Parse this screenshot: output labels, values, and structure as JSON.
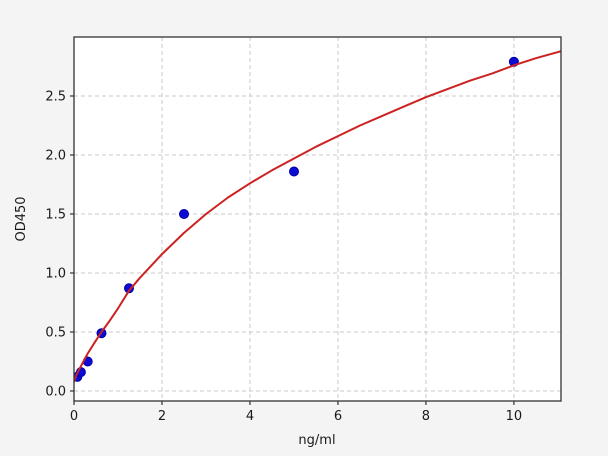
{
  "figure": {
    "background_color": "#f4f4f4",
    "plot_background_color": "#ffffff",
    "grid_color": "#c9c9c9",
    "spine_color": "#333333",
    "tick_color": "#333333",
    "tick_label_color": "#1a1a1a"
  },
  "chart_data": {
    "type": "scatter",
    "title": "",
    "xlabel": "ng/ml",
    "ylabel": "OD450",
    "xlim": [
      0,
      11.07
    ],
    "ylim": [
      -0.085,
      3.0
    ],
    "x_tick_values": [
      0,
      2,
      4,
      6,
      8,
      10
    ],
    "x_tick_labels": [
      "0",
      "2",
      "4",
      "6",
      "8",
      "10"
    ],
    "y_tick_values": [
      0.0,
      0.5,
      1.0,
      1.5,
      2.0,
      2.5
    ],
    "y_tick_labels": [
      "0.0",
      "0.5",
      "1.0",
      "1.5",
      "2.0",
      "2.5"
    ],
    "grid": "dashed",
    "legend_position": "none",
    "series": [
      {
        "name": "standard-points",
        "type": "scatter",
        "color": "#0b0bd6",
        "marker_edge_color": "#0000a0",
        "marker_radius": 4.5,
        "x": [
          0.078,
          0.156,
          0.3125,
          0.625,
          1.25,
          2.5,
          5,
          10
        ],
        "y": [
          0.12,
          0.16,
          0.25,
          0.49,
          0.87,
          1.5,
          1.86,
          2.79
        ]
      },
      {
        "name": "fit-curve",
        "type": "line",
        "color": "#cc2222",
        "line_width": 2,
        "points": [
          [
            0,
            0.08
          ],
          [
            0.05,
            0.13
          ],
          [
            0.1,
            0.17
          ],
          [
            0.2,
            0.24
          ],
          [
            0.3,
            0.31
          ],
          [
            0.45,
            0.4
          ],
          [
            0.625,
            0.5
          ],
          [
            0.8,
            0.59
          ],
          [
            1.0,
            0.7
          ],
          [
            1.25,
            0.85
          ],
          [
            1.5,
            0.96
          ],
          [
            1.75,
            1.06
          ],
          [
            2.0,
            1.16
          ],
          [
            2.25,
            1.25
          ],
          [
            2.5,
            1.34
          ],
          [
            3.0,
            1.5
          ],
          [
            3.5,
            1.64
          ],
          [
            4.0,
            1.76
          ],
          [
            4.5,
            1.87
          ],
          [
            5.0,
            1.97
          ],
          [
            5.5,
            2.07
          ],
          [
            6.0,
            2.16
          ],
          [
            6.5,
            2.25
          ],
          [
            7.0,
            2.33
          ],
          [
            7.5,
            2.41
          ],
          [
            8.0,
            2.49
          ],
          [
            8.5,
            2.56
          ],
          [
            9.0,
            2.63
          ],
          [
            9.5,
            2.69
          ],
          [
            10.0,
            2.76
          ],
          [
            10.5,
            2.82
          ],
          [
            11.07,
            2.88
          ]
        ]
      }
    ]
  }
}
